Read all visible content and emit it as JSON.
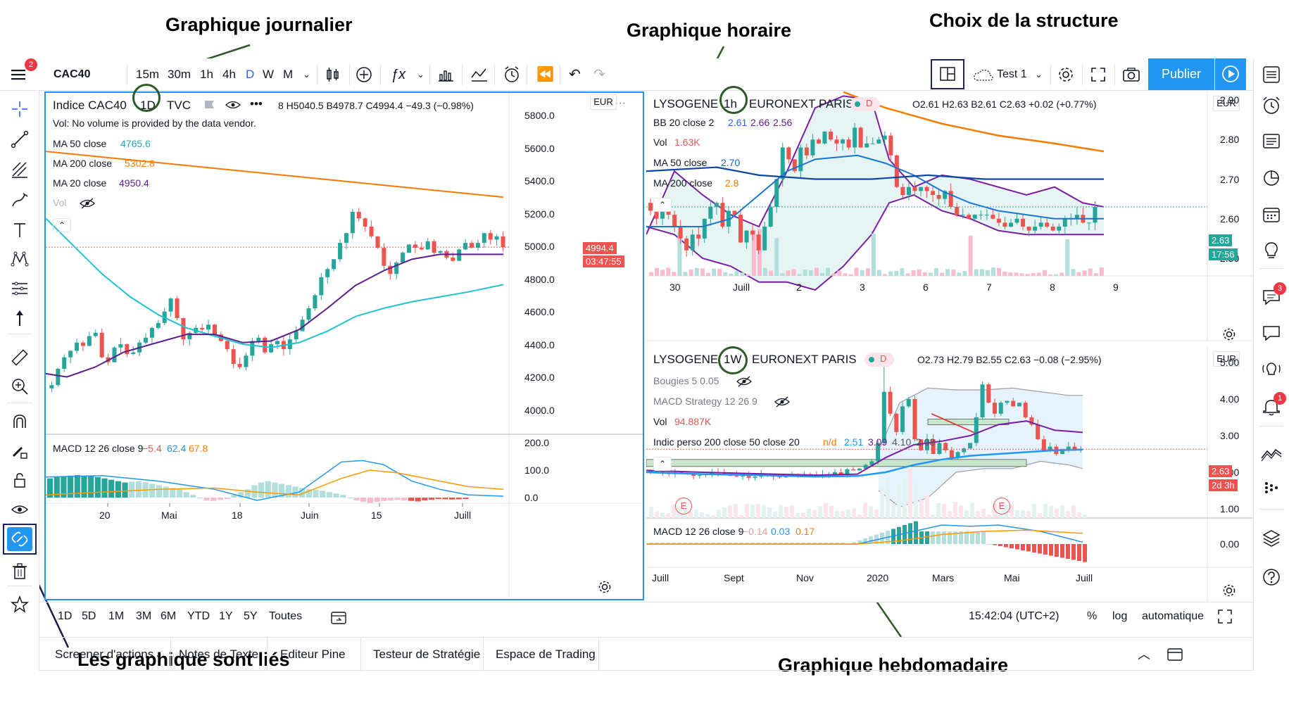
{
  "annotations": {
    "daily": "Graphique journalier",
    "hourly": "Graphique horaire",
    "layout_choice": "Choix de la structure",
    "linked": "Les graphique sont liés",
    "weekly": "Graphique hebdomadaire"
  },
  "topbar": {
    "notif_count": "2",
    "symbol": "CAC40",
    "intervals": [
      "15m",
      "30m",
      "1h",
      "4h",
      "D",
      "W",
      "M"
    ],
    "active_interval": "D",
    "layout_name": "Test 1",
    "publish": "Publier"
  },
  "colors": {
    "up": "#26a69a",
    "down": "#ef5350",
    "accent": "#2962ff",
    "ma50": "#22c2d0",
    "ma200": "#f57c00",
    "ma20": "#5b1e8c",
    "macd": "#2196f3",
    "signal": "#ff9800"
  },
  "daily_chart": {
    "title": "Indice CAC40",
    "interval": "1D",
    "source": "TVC",
    "ohlc": "8 H5040.5 B4978.7 C4994.4 −49.3 (−0.98%)",
    "vol_note": "Vol: No volume is provided by the data vendor.",
    "ma50_label": "MA 50 close",
    "ma50_value": "4765.6",
    "ma200_label": "MA 200 close",
    "ma200_value": "5302.8",
    "ma20_label": "MA 20 close",
    "ma20_value": "4950.4",
    "vol_label": "Vol",
    "currency": "EUR",
    "y_ticks": [
      "5800.0",
      "5600.0",
      "5400.0",
      "5200.0",
      "5000.0",
      "4800.0",
      "4600.0",
      "4400.0",
      "4200.0",
      "4000.0"
    ],
    "price_tag": "4994.4",
    "time_tag": "03:47:55",
    "macd_label": "MACD 12 26 close 9",
    "macd_v1": "−5.4",
    "macd_v2": "62.4",
    "macd_v3": "67.8",
    "macd_ticks": [
      "200.0",
      "100.0",
      "0.0"
    ],
    "x_ticks": [
      "20",
      "Mai",
      "18",
      "Juin",
      "15",
      "Juill"
    ]
  },
  "hourly_chart": {
    "title": "LYSOGENE",
    "interval": "1h",
    "exchange": "EURONEXT PARIS",
    "flag": "D",
    "ohlc": "O2.61 H2.63 B2.61 C2.63 +0.02 (+0.77%)",
    "bb_label": "BB 20 close 2",
    "bb_v1": "2.61",
    "bb_v2": "2.66",
    "bb_v3": "2.56",
    "vol_label": "Vol",
    "vol_value": "1.63K",
    "ma50_label": "MA 50 close",
    "ma50_value": "2.70",
    "ma200_label": "MA 200 close",
    "ma200_value": "2.8",
    "currency": "EUR",
    "y_ticks": [
      "2.90",
      "2.80",
      "2.70",
      "2.60",
      "2.50"
    ],
    "price_tag": "2.63",
    "time_tag": "17:56",
    "x_ticks": [
      "30",
      "Juill",
      "2",
      "3",
      "6",
      "7",
      "8",
      "9"
    ]
  },
  "weekly_chart": {
    "title": "LYSOGENE",
    "interval": "1W",
    "exchange": "EURONEXT PARIS",
    "flag": "D",
    "ohlc": "O2.73 H2.79 B2.55 C2.63 −0.08 (−2.95%)",
    "bougies_label": "Bougies 5 0.05",
    "macd_strat_label": "MACD Strategy 12 26 9",
    "vol_label": "Vol",
    "vol_value": "94.887K",
    "indic_label": "Indic perso 200 close 50 close 20",
    "indic_na": "n/d",
    "indic_v1": "2.51",
    "indic_v2": "3.09",
    "indic_v3": "4.10",
    "indic_v4": "2.08",
    "currency": "EUR",
    "y_ticks": [
      "5.00",
      "4.00",
      "3.00",
      "2.00",
      "1.00"
    ],
    "price_tag": "2.63",
    "time_tag": "2d 3h",
    "earn": "E",
    "macd_label": "MACD 12 26 close 9",
    "macd_v1": "−0.14",
    "macd_v2": "0.03",
    "macd_v3": "0.17",
    "macd_ticks": [
      "0.00"
    ],
    "x_ticks": [
      "Juill",
      "Sept",
      "Nov",
      "2020",
      "Mars",
      "Mai",
      "Juill"
    ]
  },
  "bottombar": {
    "ranges": [
      "1D",
      "5D",
      "1M",
      "3M",
      "6M",
      "YTD",
      "1Y",
      "5Y",
      "Toutes"
    ],
    "clock": "15:42:04 (UTC+2)",
    "pct": "%",
    "log": "log",
    "auto": "automatique"
  },
  "tabs": [
    "Screener d'actions",
    "Notes de Texte",
    "Editeur Pine",
    "Testeur de Stratégie",
    "Espace de Trading"
  ],
  "right_badges": {
    "chat": "3",
    "alerts": "1"
  }
}
